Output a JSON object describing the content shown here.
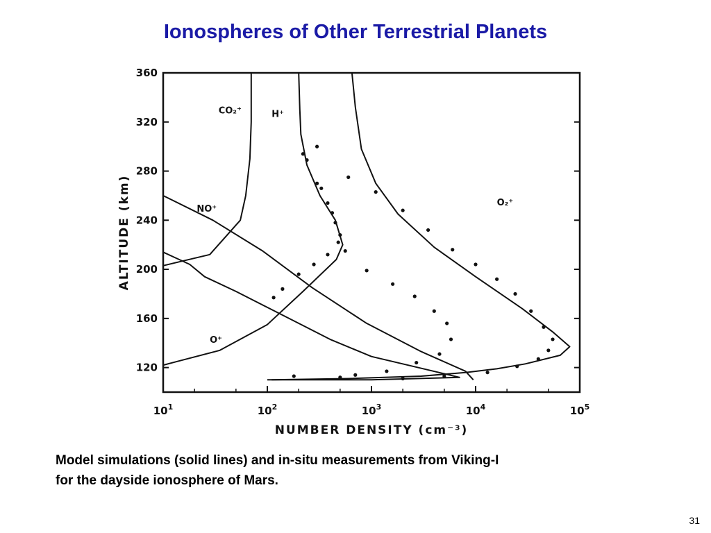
{
  "slide": {
    "title": "Ionospheres of Other Terrestrial Planets",
    "caption_line1": "Model simulations (solid lines) and in-situ measurements from Viking-I",
    "caption_line2": "for the dayside ionosphere of Mars.",
    "page_number": "31",
    "title_color": "#1a1aa6"
  },
  "chart_data": {
    "type": "line",
    "xlabel": "NUMBER DENSITY (cm⁻³)",
    "ylabel": "ALTITUDE (km)",
    "xscale": "log",
    "xlim": [
      10,
      100000
    ],
    "ylim": [
      100,
      360
    ],
    "x_ticks": [
      {
        "value": 10,
        "base": "10",
        "exp": "1"
      },
      {
        "value": 100,
        "base": "10",
        "exp": "2"
      },
      {
        "value": 1000,
        "base": "10",
        "exp": "3"
      },
      {
        "value": 10000,
        "base": "10",
        "exp": "4"
      },
      {
        "value": 100000,
        "base": "10",
        "exp": "5"
      }
    ],
    "y_ticks": [
      120,
      160,
      200,
      240,
      280,
      320,
      360
    ],
    "grid": false,
    "series": [
      {
        "name": "CO₂⁺",
        "style": "line",
        "label_at": {
          "x": 34,
          "y": 327
        },
        "points": [
          [
            100,
            110
          ],
          [
            1000,
            110
          ],
          [
            7000,
            112
          ],
          [
            5000,
            115
          ],
          [
            2500,
            121
          ],
          [
            1000,
            129
          ],
          [
            400,
            143
          ],
          [
            200,
            156
          ],
          [
            100,
            169
          ],
          [
            50,
            182
          ],
          [
            25,
            194
          ],
          [
            18,
            204
          ],
          [
            10,
            214
          ]
        ]
      },
      {
        "name": "O₂⁺",
        "style": "line",
        "label_at": {
          "x": 16000,
          "y": 252
        },
        "points": [
          [
            110,
            110
          ],
          [
            600,
            111
          ],
          [
            3000,
            113
          ],
          [
            8000,
            116
          ],
          [
            16000,
            119
          ],
          [
            30000,
            123
          ],
          [
            65000,
            130
          ],
          [
            80000,
            137
          ],
          [
            55000,
            149
          ],
          [
            28000,
            168
          ],
          [
            10000,
            194
          ],
          [
            4000,
            218
          ],
          [
            1800,
            245
          ],
          [
            1100,
            270
          ],
          [
            800,
            298
          ],
          [
            700,
            332
          ],
          [
            650,
            360
          ]
        ]
      },
      {
        "name": "H⁺",
        "style": "line",
        "label_at": {
          "x": 110,
          "y": 324
        },
        "points": [
          [
            70,
            360
          ],
          [
            70,
            320
          ],
          [
            68,
            290
          ],
          [
            62,
            260
          ],
          [
            55,
            240
          ],
          [
            28,
            212
          ],
          [
            10,
            203
          ]
        ]
      },
      {
        "name": "NO⁺",
        "style": "line",
        "label_at": {
          "x": 21,
          "y": 247
        },
        "points": [
          [
            10,
            260
          ],
          [
            30,
            240
          ],
          [
            90,
            215
          ],
          [
            270,
            185
          ],
          [
            900,
            156
          ],
          [
            3000,
            133
          ],
          [
            8000,
            117
          ],
          [
            9500,
            110
          ]
        ]
      },
      {
        "name": "O⁺",
        "style": "line",
        "label_at": {
          "x": 28,
          "y": 140
        },
        "points": [
          [
            10,
            122
          ],
          [
            35,
            134
          ],
          [
            100,
            155
          ],
          [
            220,
            182
          ],
          [
            460,
            208
          ],
          [
            530,
            220
          ],
          [
            450,
            240
          ],
          [
            320,
            260
          ],
          [
            240,
            285
          ],
          [
            210,
            310
          ],
          [
            205,
            330
          ],
          [
            200,
            360
          ]
        ]
      },
      {
        "name": "O₂⁺ (Viking-I)",
        "style": "dots",
        "points": [
          [
            300,
            300
          ],
          [
            600,
            275
          ],
          [
            1100,
            263
          ],
          [
            2000,
            248
          ],
          [
            3500,
            232
          ],
          [
            6000,
            216
          ],
          [
            10000,
            204
          ],
          [
            16000,
            192
          ],
          [
            24000,
            180
          ],
          [
            34000,
            166
          ],
          [
            45000,
            153
          ],
          [
            55000,
            143
          ],
          [
            50000,
            134
          ],
          [
            40000,
            127
          ],
          [
            25000,
            121
          ],
          [
            13000,
            116
          ],
          [
            5000,
            113
          ],
          [
            2000,
            111
          ],
          [
            500,
            112
          ],
          [
            180,
            113
          ]
        ]
      },
      {
        "name": "CO₂⁺ (Viking-I)",
        "style": "dots",
        "points": [
          [
            220,
            294
          ],
          [
            300,
            270
          ],
          [
            380,
            254
          ],
          [
            450,
            238
          ],
          [
            500,
            228
          ],
          [
            560,
            215
          ],
          [
            900,
            199
          ],
          [
            1600,
            188
          ],
          [
            2600,
            178
          ],
          [
            4000,
            166
          ],
          [
            5300,
            156
          ],
          [
            5800,
            143
          ],
          [
            4500,
            131
          ],
          [
            2700,
            124
          ],
          [
            1400,
            117
          ],
          [
            700,
            114
          ]
        ]
      },
      {
        "name": "O⁺ (Viking-I)",
        "style": "dots",
        "points": [
          [
            240,
            289
          ],
          [
            330,
            266
          ],
          [
            420,
            246
          ],
          [
            480,
            222
          ],
          [
            380,
            212
          ],
          [
            280,
            204
          ],
          [
            200,
            196
          ],
          [
            140,
            184
          ],
          [
            115,
            177
          ]
        ]
      }
    ]
  }
}
